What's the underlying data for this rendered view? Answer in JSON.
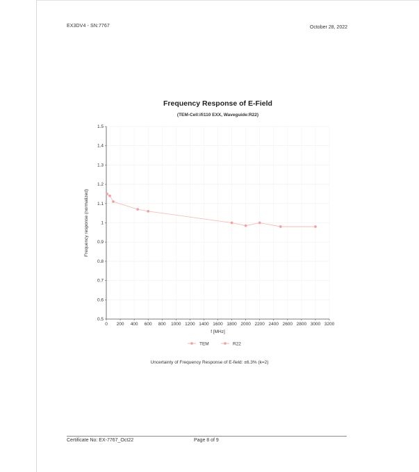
{
  "header": {
    "left": "EX3DV4 - SN:7767",
    "right": "October 28, 2022"
  },
  "chart_data": {
    "type": "line",
    "title": "Frequency Response of E-Field",
    "subtitle": "(TEM-Cell:ifi110 EXX, Waveguide:R22)",
    "xlabel": "f [MHz]",
    "ylabel": "Frequency response (normalized)",
    "xlim": [
      0,
      3200
    ],
    "ylim": [
      0.5,
      1.5
    ],
    "xticks": [
      0,
      200,
      400,
      600,
      800,
      1000,
      1200,
      1400,
      1600,
      1800,
      2000,
      2200,
      2400,
      2600,
      2800,
      3000,
      3200
    ],
    "yticks": [
      0.5,
      0.6,
      0.7,
      0.8,
      0.9,
      1,
      1.1,
      1.2,
      1.3,
      1.4,
      1.5
    ],
    "grid": true,
    "legend_position": "bottom",
    "series": [
      {
        "name": "TEM",
        "color": "#f2a3a3",
        "x": [
          10,
          50,
          100,
          450,
          600
        ],
        "y": [
          1.15,
          1.14,
          1.11,
          1.07,
          1.06
        ]
      },
      {
        "name": "R22",
        "color": "#f2a3a3",
        "x": [
          1800,
          2000,
          2200,
          2500,
          3000
        ],
        "y": [
          1.0,
          0.985,
          1.0,
          0.98,
          0.98
        ]
      }
    ]
  },
  "uncertainty_note": "Uncertainty of Frequency Response of E-field: ±6.3% (k=2)",
  "footer": {
    "certificate": "Certificate No: EX-7767_Oct22",
    "page": "Page 8 of 9"
  }
}
